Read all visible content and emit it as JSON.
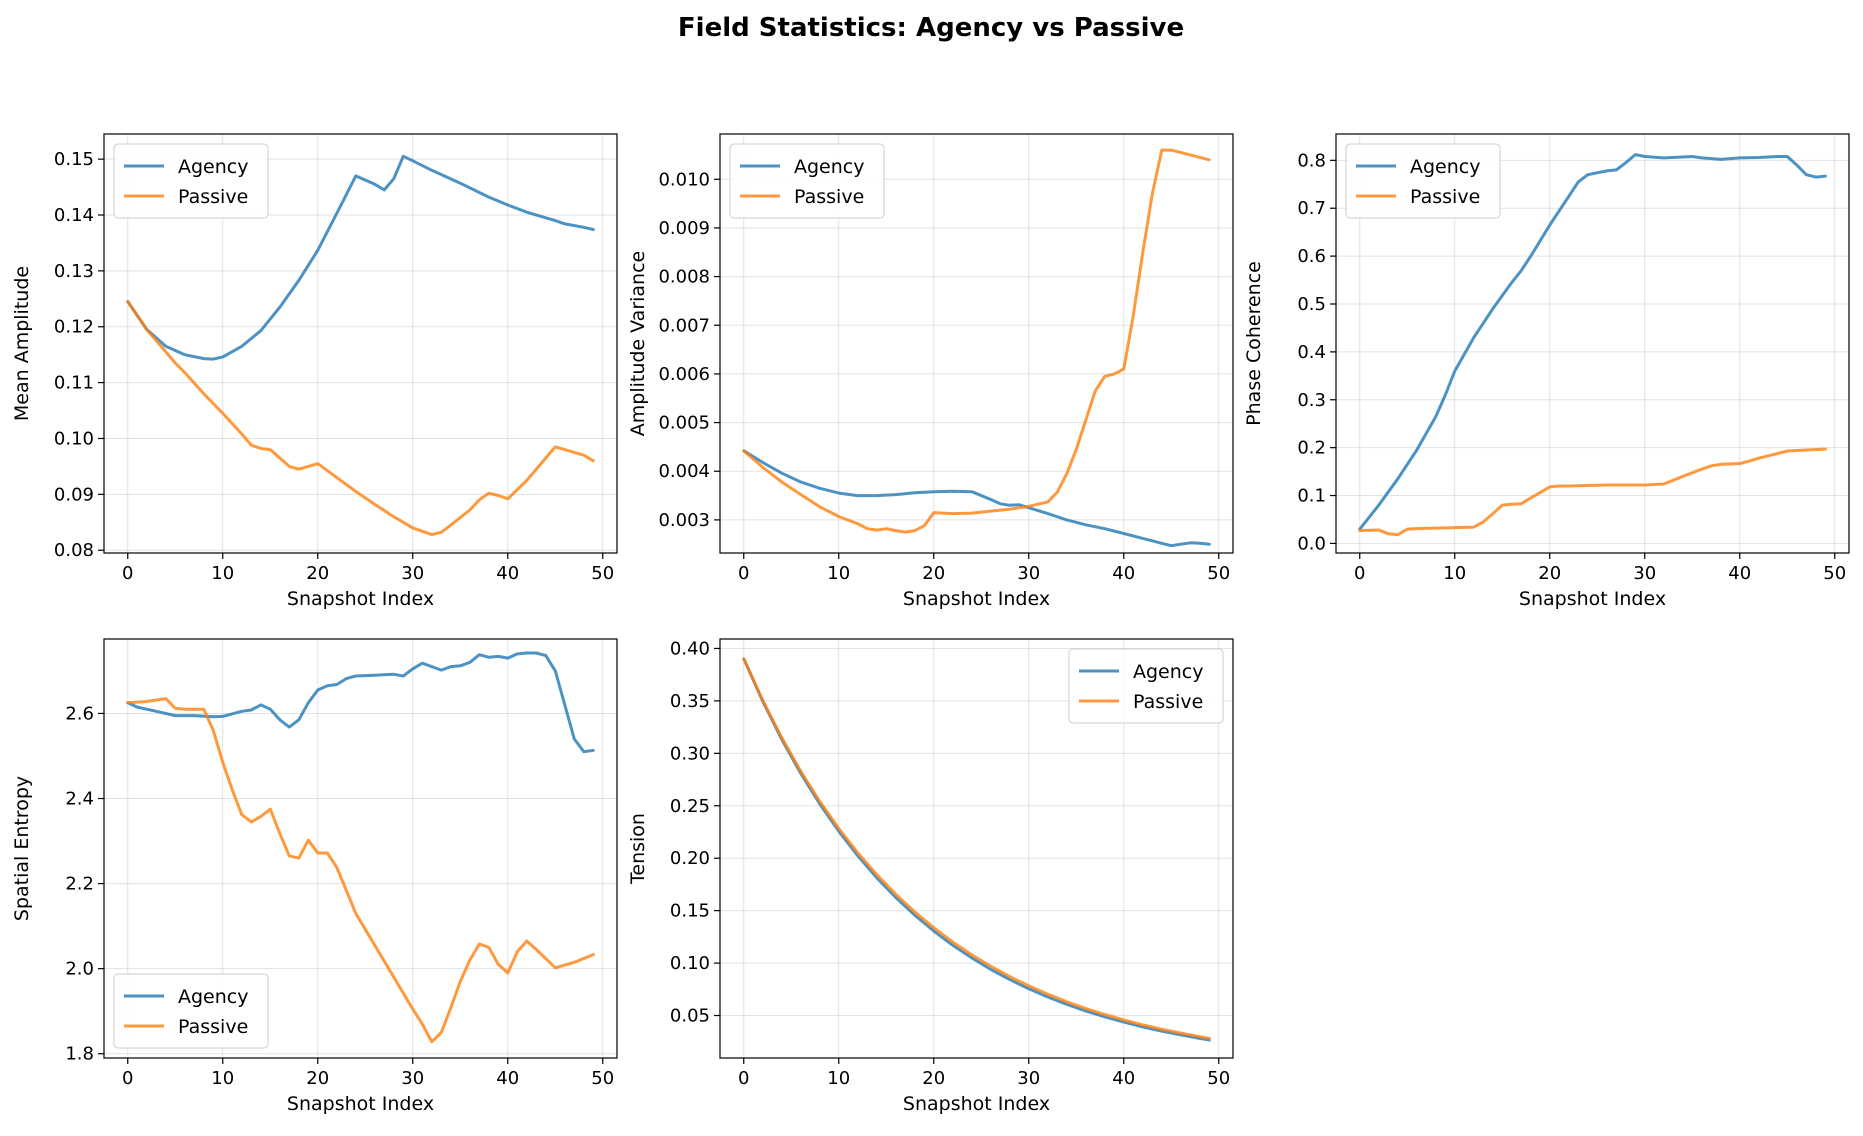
{
  "suptitle": "Field Statistics: Agency vs Passive",
  "colors": {
    "agency": "#1f77b4",
    "passive": "#ff7f0e"
  },
  "chart_data": [
    {
      "type": "line",
      "title": "",
      "xlabel": "Snapshot Index",
      "ylabel": "Mean Amplitude",
      "xlim": [
        -2.5,
        51.5
      ],
      "ylim": [
        0.0795,
        0.1545
      ],
      "xticks": [
        0,
        10,
        20,
        30,
        40,
        50
      ],
      "xtick_labels": [
        "0",
        "10",
        "20",
        "30",
        "40",
        "50"
      ],
      "yticks": [
        0.08,
        0.09,
        0.1,
        0.11,
        0.12,
        0.13,
        0.14,
        0.15
      ],
      "ytick_labels": [
        "0.08",
        "0.09",
        "0.10",
        "0.11",
        "0.12",
        "0.13",
        "0.14",
        "0.15"
      ],
      "grid": true,
      "legend": "upper-left",
      "series": [
        {
          "name": "Agency",
          "color": "#1f77b4",
          "x": [
            0,
            2,
            4,
            6,
            8,
            9,
            10,
            12,
            14,
            16,
            18,
            20,
            22,
            24,
            26,
            27,
            28,
            29,
            30,
            32,
            35,
            38,
            40,
            42,
            44,
            45,
            46,
            48,
            49
          ],
          "y": [
            0.1245,
            0.1195,
            0.1165,
            0.115,
            0.1143,
            0.1142,
            0.1146,
            0.1165,
            0.1193,
            0.1235,
            0.1283,
            0.1337,
            0.1403,
            0.147,
            0.1455,
            0.1445,
            0.1465,
            0.1505,
            0.1497,
            0.148,
            0.1457,
            0.1432,
            0.1418,
            0.1405,
            0.1395,
            0.139,
            0.1384,
            0.1378,
            0.1374
          ]
        },
        {
          "name": "Passive",
          "color": "#ff7f0e",
          "x": [
            0,
            2,
            4,
            5,
            6,
            8,
            10,
            12,
            13,
            14,
            15,
            16,
            17,
            18,
            19,
            20,
            22,
            24,
            26,
            28,
            30,
            32,
            33,
            34,
            36,
            37,
            38,
            39,
            40,
            42,
            44,
            45,
            46,
            48,
            49
          ],
          "y": [
            0.1245,
            0.1195,
            0.1155,
            0.1135,
            0.1118,
            0.108,
            0.1045,
            0.1008,
            0.0988,
            0.0982,
            0.098,
            0.0965,
            0.095,
            0.0945,
            0.095,
            0.0955,
            0.093,
            0.0905,
            0.0882,
            0.086,
            0.084,
            0.0828,
            0.0832,
            0.0845,
            0.0872,
            0.089,
            0.0902,
            0.0898,
            0.0892,
            0.0925,
            0.0965,
            0.0985,
            0.098,
            0.097,
            0.096
          ]
        }
      ]
    },
    {
      "type": "line",
      "title": "",
      "xlabel": "Snapshot Index",
      "ylabel": "Amplitude Variance",
      "xlim": [
        -2.5,
        51.5
      ],
      "ylim": [
        0.00232,
        0.01093
      ],
      "xticks": [
        0,
        10,
        20,
        30,
        40,
        50
      ],
      "xtick_labels": [
        "0",
        "10",
        "20",
        "30",
        "40",
        "50"
      ],
      "yticks": [
        0.003,
        0.004,
        0.005,
        0.006,
        0.007,
        0.008,
        0.009,
        0.01
      ],
      "ytick_labels": [
        "0.003",
        "0.004",
        "0.005",
        "0.006",
        "0.007",
        "0.008",
        "0.009",
        "0.010"
      ],
      "grid": true,
      "legend": "upper-left",
      "series": [
        {
          "name": "Agency",
          "color": "#1f77b4",
          "x": [
            0,
            2,
            4,
            6,
            8,
            10,
            12,
            14,
            16,
            18,
            20,
            22,
            24,
            26,
            27,
            28,
            29,
            30,
            32,
            34,
            36,
            38,
            40,
            42,
            44,
            45,
            46,
            47,
            48,
            49
          ],
          "y": [
            0.00442,
            0.00418,
            0.00396,
            0.00378,
            0.00365,
            0.00355,
            0.0035,
            0.0035,
            0.00352,
            0.00356,
            0.00358,
            0.00359,
            0.00358,
            0.00342,
            0.00333,
            0.0033,
            0.00331,
            0.00325,
            0.00313,
            0.003,
            0.0029,
            0.00282,
            0.00272,
            0.00262,
            0.00252,
            0.00247,
            0.0025,
            0.00253,
            0.00252,
            0.0025
          ]
        },
        {
          "name": "Passive",
          "color": "#ff7f0e",
          "x": [
            0,
            2,
            4,
            6,
            8,
            10,
            12,
            13,
            14,
            15,
            16,
            17,
            18,
            19,
            20,
            22,
            24,
            26,
            28,
            30,
            32,
            33,
            34,
            35,
            36,
            37,
            38,
            39,
            40,
            41,
            42,
            43,
            44,
            45,
            47,
            49
          ],
          "y": [
            0.00442,
            0.00408,
            0.00378,
            0.00352,
            0.00327,
            0.00307,
            0.00292,
            0.00282,
            0.00279,
            0.00282,
            0.00278,
            0.00275,
            0.00278,
            0.00288,
            0.00315,
            0.00313,
            0.00314,
            0.00318,
            0.00322,
            0.00328,
            0.00337,
            0.00357,
            0.00395,
            0.00445,
            0.00505,
            0.00565,
            0.00595,
            0.006,
            0.0061,
            0.0072,
            0.0085,
            0.0097,
            0.0106,
            0.0106,
            0.0105,
            0.0104
          ]
        }
      ]
    },
    {
      "type": "line",
      "title": "",
      "xlabel": "Snapshot Index",
      "ylabel": "Phase Coherence",
      "xlim": [
        -2.5,
        51.5
      ],
      "ylim": [
        -0.02,
        0.855
      ],
      "xticks": [
        0,
        10,
        20,
        30,
        40,
        50
      ],
      "xtick_labels": [
        "0",
        "10",
        "20",
        "30",
        "40",
        "50"
      ],
      "yticks": [
        0.0,
        0.1,
        0.2,
        0.3,
        0.4,
        0.5,
        0.6,
        0.7,
        0.8
      ],
      "ytick_labels": [
        "0.0",
        "0.1",
        "0.2",
        "0.3",
        "0.4",
        "0.5",
        "0.6",
        "0.7",
        "0.8"
      ],
      "grid": true,
      "legend": "upper-left",
      "series": [
        {
          "name": "Agency",
          "color": "#1f77b4",
          "x": [
            0,
            2,
            4,
            6,
            8,
            9,
            10,
            12,
            14,
            16,
            17,
            18,
            20,
            22,
            23,
            24,
            26,
            27,
            28,
            29,
            30,
            32,
            34,
            35,
            36,
            38,
            40,
            42,
            44,
            45,
            46,
            47,
            48,
            49
          ],
          "y": [
            0.03,
            0.08,
            0.135,
            0.195,
            0.265,
            0.31,
            0.36,
            0.43,
            0.49,
            0.545,
            0.57,
            0.6,
            0.665,
            0.725,
            0.755,
            0.77,
            0.778,
            0.78,
            0.795,
            0.812,
            0.808,
            0.805,
            0.807,
            0.808,
            0.805,
            0.802,
            0.805,
            0.806,
            0.808,
            0.808,
            0.79,
            0.77,
            0.765,
            0.767
          ]
        },
        {
          "name": "Passive",
          "color": "#ff7f0e",
          "x": [
            0,
            2,
            3,
            4,
            5,
            6,
            8,
            10,
            12,
            13,
            14,
            15,
            16,
            17,
            18,
            20,
            21,
            22,
            24,
            26,
            28,
            30,
            32,
            33,
            34,
            36,
            37,
            38,
            40,
            41,
            42,
            44,
            45,
            47,
            49
          ],
          "y": [
            0.027,
            0.028,
            0.02,
            0.018,
            0.03,
            0.031,
            0.032,
            0.033,
            0.034,
            0.045,
            0.062,
            0.08,
            0.082,
            0.083,
            0.095,
            0.118,
            0.12,
            0.12,
            0.121,
            0.122,
            0.122,
            0.122,
            0.124,
            0.132,
            0.14,
            0.155,
            0.162,
            0.165,
            0.167,
            0.172,
            0.178,
            0.188,
            0.193,
            0.195,
            0.197
          ]
        }
      ]
    },
    {
      "type": "line",
      "title": "",
      "xlabel": "Snapshot Index",
      "ylabel": "Spatial Entropy",
      "xlim": [
        -2.5,
        51.5
      ],
      "ylim": [
        1.79,
        2.775
      ],
      "xticks": [
        0,
        10,
        20,
        30,
        40,
        50
      ],
      "xtick_labels": [
        "0",
        "10",
        "20",
        "30",
        "40",
        "50"
      ],
      "yticks": [
        1.8,
        2.0,
        2.2,
        2.4,
        2.6
      ],
      "ytick_labels": [
        "1.8",
        "2.0",
        "2.2",
        "2.4",
        "2.6"
      ],
      "grid": true,
      "legend": "lower-left",
      "series": [
        {
          "name": "Agency",
          "color": "#1f77b4",
          "x": [
            0,
            1,
            3,
            5,
            7,
            9,
            10,
            12,
            13,
            14,
            15,
            16,
            17,
            18,
            19,
            20,
            21,
            22,
            23,
            24,
            26,
            28,
            29,
            30,
            31,
            32,
            33,
            34,
            35,
            36,
            37,
            38,
            39,
            40,
            41,
            42,
            43,
            44,
            45,
            46,
            47,
            48,
            49
          ],
          "y": [
            2.625,
            2.615,
            2.605,
            2.595,
            2.595,
            2.592,
            2.593,
            2.605,
            2.608,
            2.62,
            2.61,
            2.585,
            2.568,
            2.585,
            2.625,
            2.655,
            2.665,
            2.668,
            2.682,
            2.688,
            2.69,
            2.692,
            2.688,
            2.705,
            2.718,
            2.71,
            2.702,
            2.71,
            2.712,
            2.72,
            2.738,
            2.732,
            2.734,
            2.73,
            2.74,
            2.742,
            2.742,
            2.736,
            2.7,
            2.62,
            2.54,
            2.51,
            2.513
          ]
        },
        {
          "name": "Passive",
          "color": "#ff7f0e",
          "x": [
            0,
            2,
            4,
            5,
            6,
            8,
            9,
            10,
            11,
            12,
            13,
            14,
            15,
            16,
            17,
            18,
            19,
            20,
            21,
            22,
            24,
            26,
            28,
            30,
            31,
            32,
            33,
            34,
            35,
            36,
            37,
            38,
            39,
            40,
            41,
            42,
            43,
            45,
            47,
            49
          ],
          "y": [
            2.625,
            2.628,
            2.635,
            2.612,
            2.61,
            2.61,
            2.56,
            2.485,
            2.42,
            2.362,
            2.345,
            2.358,
            2.375,
            2.318,
            2.265,
            2.26,
            2.302,
            2.272,
            2.272,
            2.238,
            2.13,
            2.055,
            1.98,
            1.905,
            1.87,
            1.828,
            1.85,
            1.908,
            1.97,
            2.02,
            2.058,
            2.05,
            2.01,
            1.99,
            2.04,
            2.065,
            2.045,
            2.002,
            2.015,
            2.033
          ]
        }
      ]
    },
    {
      "type": "line",
      "title": "",
      "xlabel": "Snapshot Index",
      "ylabel": "Tension",
      "xlim": [
        -2.5,
        51.5
      ],
      "ylim": [
        0.0095,
        0.409
      ],
      "xticks": [
        0,
        10,
        20,
        30,
        40,
        50
      ],
      "xtick_labels": [
        "0",
        "10",
        "20",
        "30",
        "40",
        "50"
      ],
      "yticks": [
        0.05,
        0.1,
        0.15,
        0.2,
        0.25,
        0.3,
        0.35,
        0.4
      ],
      "ytick_labels": [
        "0.05",
        "0.10",
        "0.15",
        "0.20",
        "0.25",
        "0.30",
        "0.35",
        "0.40"
      ],
      "grid": true,
      "legend": "upper-right",
      "series": [
        {
          "name": "Agency",
          "color": "#1f77b4",
          "x": [
            0,
            2,
            4,
            6,
            8,
            10,
            12,
            14,
            16,
            18,
            20,
            22,
            24,
            26,
            28,
            30,
            32,
            34,
            36,
            38,
            40,
            42,
            44,
            46,
            48,
            49
          ],
          "y": [
            0.39,
            0.3495,
            0.3132,
            0.2808,
            0.2517,
            0.2257,
            0.2023,
            0.1813,
            0.1625,
            0.1457,
            0.1306,
            0.117,
            0.1049,
            0.094,
            0.0843,
            0.0755,
            0.0677,
            0.0607,
            0.0544,
            0.0488,
            0.0437,
            0.0392,
            0.0351,
            0.0315,
            0.0282,
            0.0267
          ]
        },
        {
          "name": "Passive",
          "color": "#ff7f0e",
          "x": [
            0,
            2,
            4,
            6,
            8,
            10,
            12,
            14,
            16,
            18,
            20,
            22,
            24,
            26,
            28,
            30,
            32,
            34,
            36,
            38,
            40,
            42,
            44,
            46,
            48,
            49
          ],
          "y": [
            0.39,
            0.3503,
            0.3147,
            0.2828,
            0.2541,
            0.2283,
            0.2051,
            0.1843,
            0.1656,
            0.1487,
            0.1336,
            0.12,
            0.1078,
            0.0969,
            0.0871,
            0.0782,
            0.0703,
            0.0631,
            0.0567,
            0.051,
            0.0458,
            0.0411,
            0.037,
            0.0332,
            0.0298,
            0.0283
          ]
        }
      ]
    }
  ]
}
